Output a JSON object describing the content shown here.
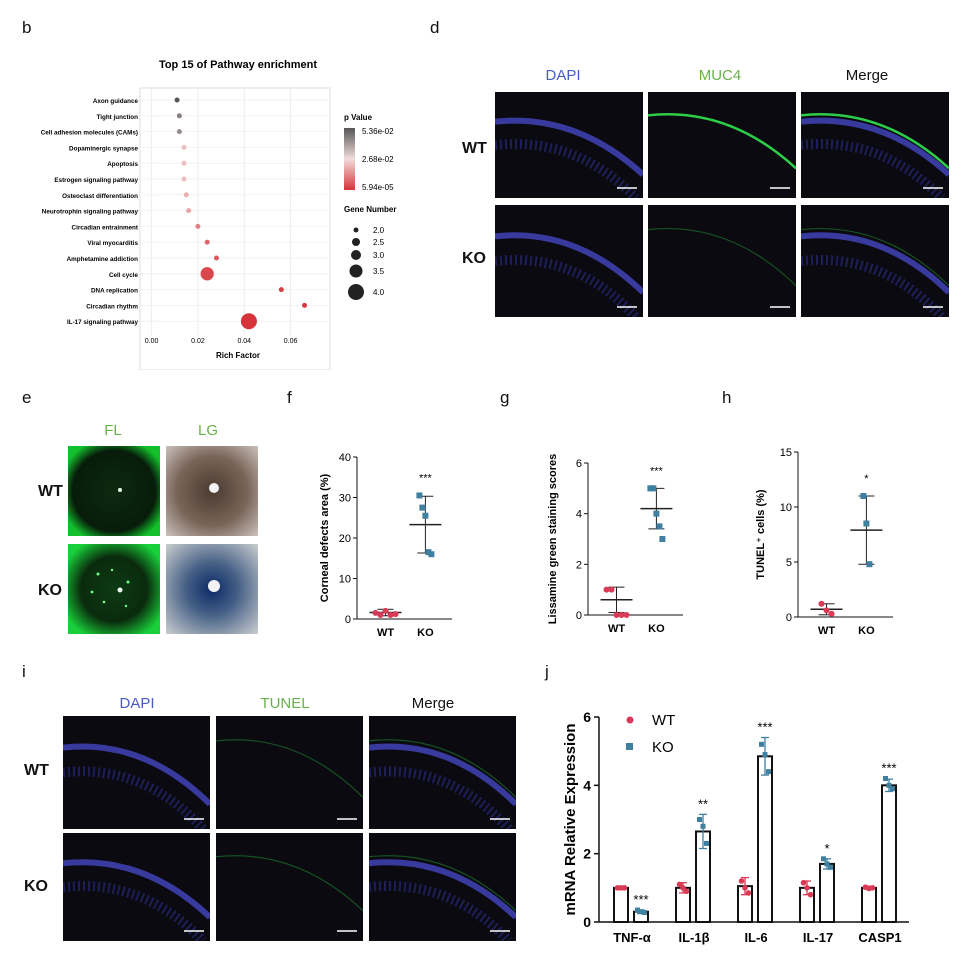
{
  "panels": {
    "b": "b",
    "d": "d",
    "e": "e",
    "f": "f",
    "g": "g",
    "h": "h",
    "i": "i",
    "j": "j"
  },
  "panel_b": {
    "title": "Top 15 of Pathway enrichment",
    "xlabel": "Rich Factor",
    "xticks": [
      "0.00",
      "0.02",
      "0.04",
      "0.06"
    ],
    "pvalue_title": "p Value",
    "pvalue_ticks": [
      "5.36e-02",
      "2.68e-02",
      "5.94e-05"
    ],
    "gene_title": "Gene Number",
    "gene_ticks": [
      "2.0",
      "2.5",
      "3.0",
      "3.5",
      "4.0"
    ],
    "colors": {
      "high": "#555555",
      "mid": "#f2dcdc",
      "low": "#d6333a"
    }
  },
  "panel_d": {
    "col1": "DAPI",
    "col2": "MUC4",
    "col3": "Merge",
    "row1": "WT",
    "row2": "KO"
  },
  "panel_e": {
    "col1": "FL",
    "col2": "LG",
    "row1": "WT",
    "row2": "KO"
  },
  "panel_i": {
    "col1": "DAPI",
    "col2": "TUNEL",
    "col3": "Merge",
    "row1": "WT",
    "row2": "KO"
  },
  "chart_data": [
    {
      "id": "b",
      "type": "scatter",
      "title": "Top 15 of Pathway enrichment",
      "xlabel": "Rich Factor",
      "xlim": [
        -0.005,
        0.077
      ],
      "categories": [
        "Axon guidance",
        "Tight junction",
        "Cell adhesion molecules (CAMs)",
        "Dopaminergic synapse",
        "Apoptosis",
        "Estrogen signaling pathway",
        "Osteoclast differentiation",
        "Neurotrophin signaling pathway",
        "Circadian entrainment",
        "Viral myocarditis",
        "Amphetamine addiction",
        "Cell cycle",
        "DNA replication",
        "Circadian rhythm",
        "IL-17 signaling pathway"
      ],
      "rich_factor": [
        0.011,
        0.012,
        0.012,
        0.014,
        0.014,
        0.014,
        0.015,
        0.016,
        0.02,
        0.024,
        0.028,
        0.024,
        0.056,
        0.066,
        0.042
      ],
      "gene_number": [
        2,
        2,
        2,
        2,
        2,
        2,
        2,
        2,
        2,
        2,
        2,
        3.5,
        2,
        2,
        4
      ],
      "p_value": [
        0.0536,
        0.045,
        0.043,
        0.022,
        0.022,
        0.022,
        0.02,
        0.018,
        0.012,
        0.008,
        0.006,
        0.003,
        0.002,
        0.001,
        6e-05
      ]
    },
    {
      "id": "f",
      "type": "scatter",
      "ylabel": "Corneal defects area (%)",
      "ylim": [
        0,
        40
      ],
      "yticks": [
        "0",
        "10",
        "20",
        "30",
        "40"
      ],
      "categories": [
        "WT",
        "KO"
      ],
      "points": [
        [
          1.5,
          1.0,
          2.0,
          1.0,
          1.2
        ],
        [
          30.5,
          27.5,
          25.5,
          16.5,
          16.0
        ]
      ],
      "mean": [
        1.6,
        23.3
      ],
      "sd": [
        0.8,
        7.0
      ],
      "significance": "***"
    },
    {
      "id": "g",
      "type": "scatter",
      "ylabel": "Lissamine green staining scores",
      "ylim": [
        0,
        6
      ],
      "yticks": [
        "0",
        "2",
        "4",
        "6"
      ],
      "categories": [
        "WT",
        "KO"
      ],
      "points": [
        [
          1.0,
          1.0,
          0.0,
          0.0,
          0.0
        ],
        [
          5.0,
          5.0,
          4.0,
          3.5,
          3.0
        ]
      ],
      "mean": [
        0.6,
        4.2
      ],
      "sd": [
        0.5,
        0.8
      ],
      "significance": "***"
    },
    {
      "id": "h",
      "type": "scatter",
      "ylabel": "TUNEL⁺ cells (%)",
      "ylim": [
        0,
        15
      ],
      "yticks": [
        "0",
        "5",
        "10",
        "15"
      ],
      "categories": [
        "WT",
        "KO"
      ],
      "points": [
        [
          1.2,
          0.6,
          0.3
        ],
        [
          11.0,
          8.5,
          4.8
        ]
      ],
      "mean": [
        0.7,
        7.9
      ],
      "sd": [
        0.5,
        3.1
      ],
      "significance": "*"
    },
    {
      "id": "j",
      "type": "bar",
      "ylabel": "mRNA Relative Expression",
      "ylim": [
        0,
        6
      ],
      "yticks": [
        "0",
        "2",
        "4",
        "6"
      ],
      "categories": [
        "TNF-α",
        "IL-1β",
        "IL-6",
        "IL-17",
        "CASP1"
      ],
      "legend": [
        "WT",
        "KO"
      ],
      "series": [
        {
          "name": "WT",
          "values": [
            1.0,
            1.0,
            1.05,
            1.0,
            1.0
          ],
          "sd": [
            0.05,
            0.15,
            0.25,
            0.2,
            0.05
          ],
          "points": [
            [
              1.0,
              1.0,
              1.0
            ],
            [
              1.1,
              1.0,
              0.9
            ],
            [
              1.2,
              1.0,
              0.85
            ],
            [
              1.15,
              1.0,
              0.8
            ],
            [
              1.02,
              0.98,
              1.0
            ]
          ]
        },
        {
          "name": "KO",
          "values": [
            0.3,
            2.65,
            4.85,
            1.7,
            4.0
          ],
          "sd": [
            0.05,
            0.5,
            0.55,
            0.15,
            0.18
          ],
          "points": [
            [
              0.35,
              0.3,
              0.28
            ],
            [
              3.0,
              2.8,
              2.3
            ],
            [
              5.2,
              4.9,
              4.4
            ],
            [
              1.85,
              1.7,
              1.6
            ],
            [
              4.2,
              4.0,
              3.9
            ]
          ]
        }
      ],
      "significance": [
        "***",
        "**",
        "***",
        "*",
        "***"
      ]
    }
  ]
}
